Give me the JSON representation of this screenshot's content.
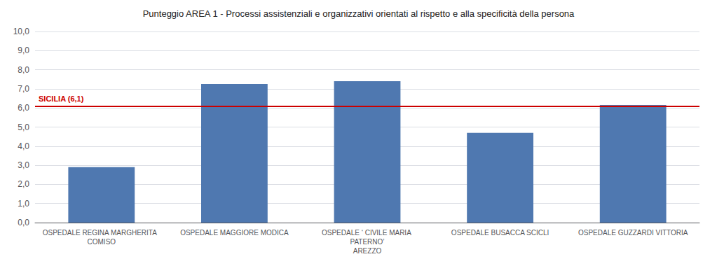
{
  "chart_data": {
    "type": "bar",
    "title": "Punteggio AREA 1 - Processi assistenziali e organizzativi orientati al rispetto e alla specificità della persona",
    "categories": [
      "OSPEDALE REGINA MARGHERITA  COMISO",
      "OSPEDALE MAGGIORE MODICA",
      "OSPEDALE ‘ CIVILE MARIA PATERNO’\nAREZZO",
      "OSPEDALE BUSACCA SCICLI",
      "OSPEDALE GUZZARDI VITTORIA"
    ],
    "values": [
      2.9,
      7.25,
      7.4,
      4.7,
      6.15
    ],
    "color": "#4f78b0",
    "reference_line": {
      "value": 6.1,
      "label": "SICILIA (6,1)",
      "color": "#cc0000"
    },
    "ylim": [
      0,
      10
    ],
    "yticks": [
      {
        "value": 0,
        "label": "0,0"
      },
      {
        "value": 1,
        "label": "1,0"
      },
      {
        "value": 2,
        "label": "2,0"
      },
      {
        "value": 3,
        "label": "3,0"
      },
      {
        "value": 4,
        "label": "4,0"
      },
      {
        "value": 5,
        "label": "5,0"
      },
      {
        "value": 6,
        "label": "6,0"
      },
      {
        "value": 7,
        "label": "7,0"
      },
      {
        "value": 8,
        "label": "8,0"
      },
      {
        "value": 9,
        "label": "9,0"
      },
      {
        "value": 10,
        "label": "10,0"
      }
    ],
    "grid": true
  }
}
